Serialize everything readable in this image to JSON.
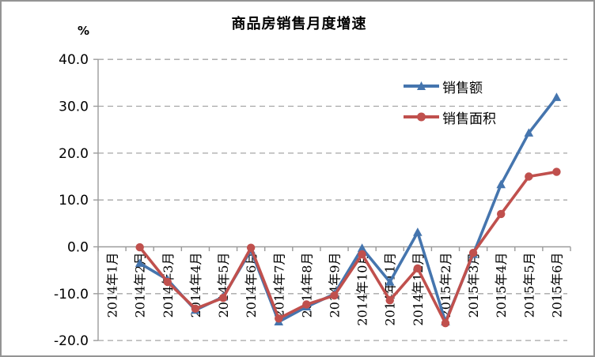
{
  "figure": {
    "title": "商品房销售月度增速",
    "unit_label": "%"
  },
  "chart_data": {
    "type": "line",
    "title": "商品房销售月度增速",
    "ylabel": "%",
    "xlabel": "",
    "ylim": [
      -20,
      40
    ],
    "ytick_interval": 10,
    "ytick_labels": [
      "40.0",
      "30.0",
      "20.0",
      "10.0",
      "0.0",
      "-10.0",
      "-20.0"
    ],
    "grid": "horizontal-dashed",
    "legend_position": "inside-upper-right",
    "x_labels_rotation": "vertical-bottom-to-top",
    "categories": [
      "2014年1月",
      "2014年2月",
      "2014年3月",
      "2014年4月",
      "2014年5月",
      "2014年6月",
      "2014年7月",
      "2014年8月",
      "2014年9月",
      "2014年10月",
      "2014年11月",
      "2014年12月",
      "2015年2月",
      "2015年3月",
      "2015年4月",
      "2015年5月",
      "2015年6月"
    ],
    "series": [
      {
        "name": "销售额",
        "color": "#4575AE",
        "marker": "triangle",
        "values": [
          null,
          -3.5,
          -7.0,
          -13.5,
          -10.7,
          -0.7,
          -16.0,
          -12.8,
          -10.1,
          -0.3,
          -7.5,
          3.1,
          -16.0,
          -1.6,
          13.3,
          24.3,
          31.9
        ]
      },
      {
        "name": "销售面积",
        "color": "#C0504D",
        "marker": "circle",
        "values": [
          null,
          -0.1,
          -7.5,
          -13.2,
          -10.9,
          -0.2,
          -15.3,
          -12.3,
          -10.4,
          -1.6,
          -11.4,
          -4.6,
          -16.3,
          -1.3,
          7.0,
          15.0,
          16.0
        ]
      }
    ],
    "colors": {
      "axis": "#9B9B9B",
      "gridline": "#A6A6A6",
      "text": "#000000",
      "background": "#FFFFFF"
    }
  }
}
